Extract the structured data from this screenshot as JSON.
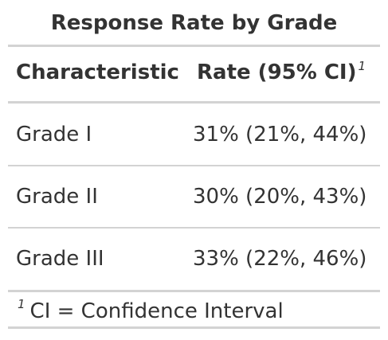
{
  "table": {
    "title": "Response Rate by Grade",
    "headers": {
      "characteristic": "Characteristic",
      "rate": "Rate (95% CI)",
      "rate_footnote_mark": "1"
    },
    "rows": [
      {
        "label": "Grade I",
        "rate": "31% (21%, 44%)"
      },
      {
        "label": "Grade II",
        "rate": "30% (20%, 43%)"
      },
      {
        "label": "Grade III",
        "rate": "33% (22%, 46%)"
      }
    ],
    "footnote": {
      "mark": "1",
      "text": "CI = Confidence Interval"
    }
  }
}
